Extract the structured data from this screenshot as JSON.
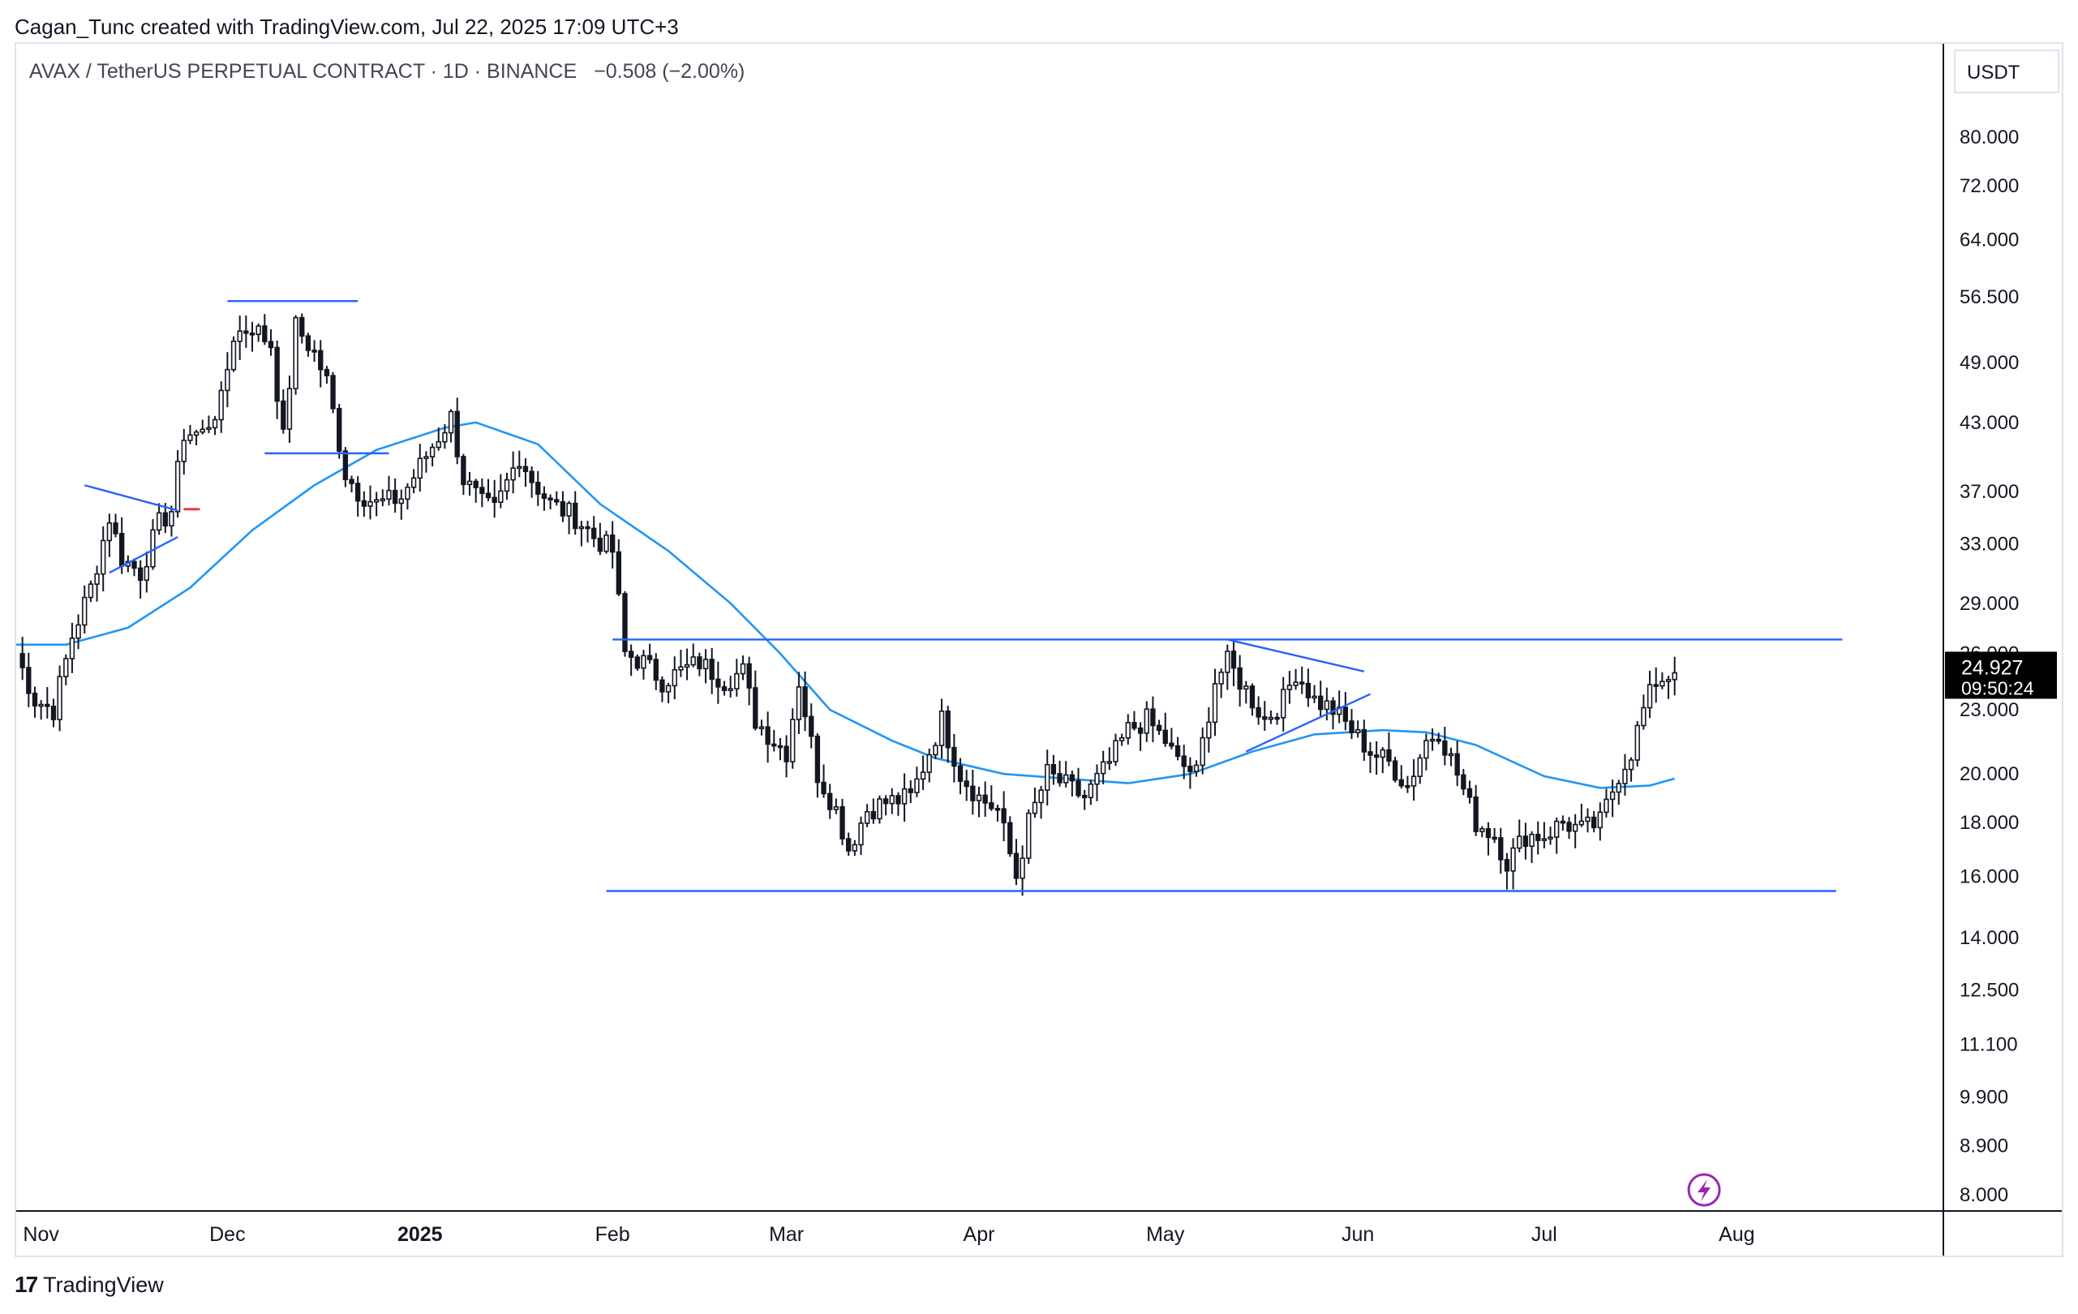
{
  "header": {
    "credit": "Cagan_Tunc created with TradingView.com, Jul 22, 2025 17:09 UTC+3"
  },
  "symbol": {
    "name": "AVAX / TetherUS PERPETUAL CONTRACT · 1D · BINANCE",
    "change": "−0.508 (−2.00%)"
  },
  "footer": {
    "brand": "TradingView"
  },
  "colors": {
    "up_body": "#ffffff",
    "down_body": "#131722",
    "wick": "#131722",
    "ma": "#2196f3",
    "drawing": "#2962ff",
    "accent_red": "#f23645",
    "last_price_bg": "#000000",
    "axis_text": "#131722",
    "flash_icon": "#9c27b0"
  },
  "icons": {
    "flash": "lightning-icon",
    "brand": "tradingview-logo-icon"
  },
  "chart_data": {
    "type": "candlestick",
    "interval": "1D",
    "y_scale": "log",
    "currency": "USDT",
    "ylim": [
      8.0,
      96.0
    ],
    "y_ticks": [
      "80.000",
      "72.000",
      "64.000",
      "56.500",
      "49.000",
      "43.000",
      "37.000",
      "33.000",
      "29.000",
      "26.000",
      "23.000",
      "20.000",
      "18.000",
      "16.000",
      "14.000",
      "12.500",
      "11.100",
      "9.900",
      "8.900",
      "8.000"
    ],
    "x_range": [
      "2024-10-28",
      "2025-09-03"
    ],
    "x_ticks": [
      {
        "date": "2024-11-01",
        "label": "Nov"
      },
      {
        "date": "2024-12-01",
        "label": "Dec"
      },
      {
        "date": "2025-01-01",
        "label": "2025"
      },
      {
        "date": "2025-02-01",
        "label": "Feb"
      },
      {
        "date": "2025-03-01",
        "label": "Mar"
      },
      {
        "date": "2025-04-01",
        "label": "Apr"
      },
      {
        "date": "2025-05-01",
        "label": "May"
      },
      {
        "date": "2025-06-01",
        "label": "Jun"
      },
      {
        "date": "2025-07-01",
        "label": "Jul"
      },
      {
        "date": "2025-08-01",
        "label": "Aug"
      }
    ],
    "last_price": "24.927",
    "countdown": "09:50:24",
    "close_path": [
      [
        "2024-10-28",
        26.0
      ],
      [
        "2024-10-31",
        23.5
      ],
      [
        "2024-11-03",
        23.0
      ],
      [
        "2024-11-06",
        27.0
      ],
      [
        "2024-11-09",
        30.0
      ],
      [
        "2024-11-12",
        35.0
      ],
      [
        "2024-11-14",
        32.0
      ],
      [
        "2024-11-17",
        31.0
      ],
      [
        "2024-11-20",
        34.5
      ],
      [
        "2024-11-22",
        35.5
      ],
      [
        "2024-11-24",
        42.0
      ],
      [
        "2024-11-27",
        42.0
      ],
      [
        "2024-11-30",
        45.0
      ],
      [
        "2024-12-02",
        52.0
      ],
      [
        "2024-12-05",
        53.0
      ],
      [
        "2024-12-08",
        51.0
      ],
      [
        "2024-12-10",
        41.5
      ],
      [
        "2024-12-12",
        53.0
      ],
      [
        "2024-12-15",
        50.0
      ],
      [
        "2024-12-17",
        47.0
      ],
      [
        "2024-12-20",
        38.5
      ],
      [
        "2024-12-22",
        37.0
      ],
      [
        "2024-12-25",
        36.0
      ],
      [
        "2024-12-29",
        36.5
      ],
      [
        "2025-01-02",
        40.0
      ],
      [
        "2025-01-06",
        43.5
      ],
      [
        "2025-01-08",
        38.0
      ],
      [
        "2025-01-11",
        36.0
      ],
      [
        "2025-01-13",
        35.5
      ],
      [
        "2025-01-17",
        40.0
      ],
      [
        "2025-01-19",
        38.0
      ],
      [
        "2025-01-22",
        36.0
      ],
      [
        "2025-01-26",
        35.0
      ],
      [
        "2025-01-29",
        33.5
      ],
      [
        "2025-02-01",
        32.5
      ],
      [
        "2025-02-03",
        26.0
      ],
      [
        "2025-02-06",
        25.5
      ],
      [
        "2025-02-09",
        24.5
      ],
      [
        "2025-02-12",
        25.0
      ],
      [
        "2025-02-15",
        25.5
      ],
      [
        "2025-02-19",
        24.5
      ],
      [
        "2025-02-22",
        25.0
      ],
      [
        "2025-02-24",
        22.5
      ],
      [
        "2025-02-27",
        21.5
      ],
      [
        "2025-03-01",
        21.0
      ],
      [
        "2025-03-03",
        24.5
      ],
      [
        "2025-03-06",
        20.0
      ],
      [
        "2025-03-09",
        18.5
      ],
      [
        "2025-03-11",
        17.0
      ],
      [
        "2025-03-14",
        18.5
      ],
      [
        "2025-03-17",
        18.8
      ],
      [
        "2025-03-21",
        19.0
      ],
      [
        "2025-03-24",
        21.0
      ],
      [
        "2025-03-26",
        22.5
      ],
      [
        "2025-03-29",
        20.0
      ],
      [
        "2025-04-01",
        19.0
      ],
      [
        "2025-04-04",
        18.5
      ],
      [
        "2025-04-07",
        16.0
      ],
      [
        "2025-04-09",
        18.0
      ],
      [
        "2025-04-12",
        20.0
      ],
      [
        "2025-04-15",
        19.5
      ],
      [
        "2025-04-18",
        19.0
      ],
      [
        "2025-04-22",
        20.5
      ],
      [
        "2025-04-25",
        22.0
      ],
      [
        "2025-04-28",
        22.5
      ],
      [
        "2025-05-01",
        21.5
      ],
      [
        "2025-05-03",
        20.5
      ],
      [
        "2025-05-06",
        20.0
      ],
      [
        "2025-05-09",
        24.5
      ],
      [
        "2025-05-11",
        25.5
      ],
      [
        "2025-05-14",
        24.0
      ],
      [
        "2025-05-17",
        22.5
      ],
      [
        "2025-05-20",
        23.5
      ],
      [
        "2025-05-22",
        25.0
      ],
      [
        "2025-05-25",
        23.5
      ],
      [
        "2025-05-28",
        23.0
      ],
      [
        "2025-05-31",
        22.0
      ],
      [
        "2025-06-03",
        21.0
      ],
      [
        "2025-06-06",
        20.5
      ],
      [
        "2025-06-09",
        19.5
      ],
      [
        "2025-06-12",
        21.5
      ],
      [
        "2025-06-14",
        22.0
      ],
      [
        "2025-06-17",
        20.0
      ],
      [
        "2025-06-20",
        18.0
      ],
      [
        "2025-06-23",
        17.5
      ],
      [
        "2025-06-25",
        16.5
      ],
      [
        "2025-06-28",
        17.5
      ],
      [
        "2025-07-01",
        17.5
      ],
      [
        "2025-07-04",
        18.0
      ],
      [
        "2025-07-07",
        17.7
      ],
      [
        "2025-07-10",
        18.0
      ],
      [
        "2025-07-13",
        20.0
      ],
      [
        "2025-07-15",
        21.0
      ],
      [
        "2025-07-17",
        23.0
      ],
      [
        "2025-07-19",
        24.5
      ],
      [
        "2025-07-22",
        24.927
      ]
    ],
    "ma_path": [
      [
        "2024-10-28",
        26.5
      ],
      [
        "2024-11-05",
        26.5
      ],
      [
        "2024-11-15",
        27.5
      ],
      [
        "2024-11-25",
        30.0
      ],
      [
        "2024-12-05",
        34.0
      ],
      [
        "2024-12-15",
        37.5
      ],
      [
        "2024-12-25",
        40.5
      ],
      [
        "2025-01-05",
        42.5
      ],
      [
        "2025-01-10",
        43.0
      ],
      [
        "2025-01-20",
        41.0
      ],
      [
        "2025-01-30",
        36.0
      ],
      [
        "2025-02-10",
        32.5
      ],
      [
        "2025-02-20",
        29.0
      ],
      [
        "2025-02-28",
        26.0
      ],
      [
        "2025-03-08",
        23.0
      ],
      [
        "2025-03-18",
        21.5
      ],
      [
        "2025-03-25",
        20.7
      ],
      [
        "2025-04-05",
        20.0
      ],
      [
        "2025-04-15",
        19.8
      ],
      [
        "2025-04-25",
        19.6
      ],
      [
        "2025-05-05",
        20.0
      ],
      [
        "2025-05-15",
        21.0
      ],
      [
        "2025-05-25",
        21.8
      ],
      [
        "2025-06-05",
        22.0
      ],
      [
        "2025-06-12",
        21.9
      ],
      [
        "2025-06-20",
        21.3
      ],
      [
        "2025-07-01",
        19.9
      ],
      [
        "2025-07-10",
        19.4
      ],
      [
        "2025-07-18",
        19.5
      ],
      [
        "2025-07-22",
        19.8
      ]
    ],
    "drawings": [
      {
        "kind": "line",
        "from": [
          "2024-11-08",
          37.5
        ],
        "to": [
          "2024-11-23",
          35.5
        ]
      },
      {
        "kind": "line",
        "from": [
          "2024-11-12",
          31.0
        ],
        "to": [
          "2024-11-23",
          33.5
        ]
      },
      {
        "kind": "line",
        "from": [
          "2024-12-01",
          56.0
        ],
        "to": [
          "2024-12-22",
          56.0
        ]
      },
      {
        "kind": "line",
        "from": [
          "2024-12-07",
          40.2
        ],
        "to": [
          "2024-12-27",
          40.2
        ]
      },
      {
        "kind": "line",
        "from": [
          "2025-02-01",
          26.8
        ],
        "to": [
          "2025-08-18",
          26.8
        ]
      },
      {
        "kind": "line",
        "from": [
          "2025-01-31",
          15.5
        ],
        "to": [
          "2025-08-17",
          15.5
        ]
      },
      {
        "kind": "line",
        "from": [
          "2025-05-11",
          26.8
        ],
        "to": [
          "2025-06-02",
          25.0
        ]
      },
      {
        "kind": "line",
        "from": [
          "2025-05-14",
          21.0
        ],
        "to": [
          "2025-06-03",
          23.8
        ]
      }
    ],
    "title": "",
    "xlabel": "",
    "ylabel": ""
  }
}
